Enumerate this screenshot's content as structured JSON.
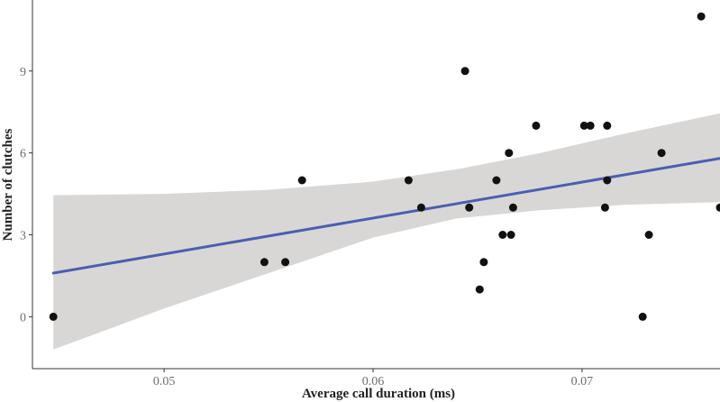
{
  "chart_data": {
    "type": "scatter",
    "title": "",
    "xlabel": "Average call duration (ms)",
    "ylabel": "Number of clutches",
    "xlim": [
      0.0437,
      0.0766
    ],
    "ylim": [
      -1.9,
      11.6
    ],
    "x_ticks": [
      0.05,
      0.06,
      0.07
    ],
    "x_tick_labels": [
      "0.05",
      "0.06",
      "0.07"
    ],
    "y_ticks": [
      0,
      3,
      6,
      9
    ],
    "y_tick_labels": [
      "0",
      "3",
      "6",
      "9"
    ],
    "grid": false,
    "legend": "none",
    "points": [
      {
        "x": 0.0447,
        "y": 0
      },
      {
        "x": 0.0548,
        "y": 2
      },
      {
        "x": 0.0558,
        "y": 2
      },
      {
        "x": 0.0566,
        "y": 5
      },
      {
        "x": 0.0617,
        "y": 5
      },
      {
        "x": 0.0623,
        "y": 4
      },
      {
        "x": 0.0644,
        "y": 9
      },
      {
        "x": 0.0646,
        "y": 4
      },
      {
        "x": 0.0651,
        "y": 1
      },
      {
        "x": 0.0653,
        "y": 2
      },
      {
        "x": 0.0659,
        "y": 5
      },
      {
        "x": 0.0662,
        "y": 3
      },
      {
        "x": 0.0665,
        "y": 6
      },
      {
        "x": 0.0666,
        "y": 3
      },
      {
        "x": 0.0667,
        "y": 4
      },
      {
        "x": 0.0678,
        "y": 7
      },
      {
        "x": 0.0701,
        "y": 7
      },
      {
        "x": 0.0704,
        "y": 7
      },
      {
        "x": 0.0711,
        "y": 4
      },
      {
        "x": 0.0712,
        "y": 5
      },
      {
        "x": 0.0712,
        "y": 7
      },
      {
        "x": 0.0729,
        "y": 0
      },
      {
        "x": 0.0732,
        "y": 3
      },
      {
        "x": 0.0738,
        "y": 6
      },
      {
        "x": 0.0757,
        "y": 11
      },
      {
        "x": 0.0766,
        "y": 4
      }
    ],
    "fit": {
      "x": [
        0.0447,
        0.0766
      ],
      "y": [
        1.6,
        5.8
      ]
    },
    "confidence_band": {
      "x": [
        0.0447,
        0.05,
        0.055,
        0.06,
        0.064,
        0.068,
        0.072,
        0.0766
      ],
      "lower": [
        -1.2,
        0.3,
        1.6,
        2.9,
        3.6,
        3.9,
        4.1,
        4.2
      ],
      "upper": [
        4.45,
        4.5,
        4.65,
        4.95,
        5.4,
        6.0,
        6.7,
        7.45
      ]
    },
    "colors": {
      "points": "#111111",
      "fit_line": "#4a5fb0",
      "band": "#d9d7d6",
      "axis": "#333333",
      "tick_text": "#6e6e6e",
      "title_text": "#222222"
    }
  }
}
